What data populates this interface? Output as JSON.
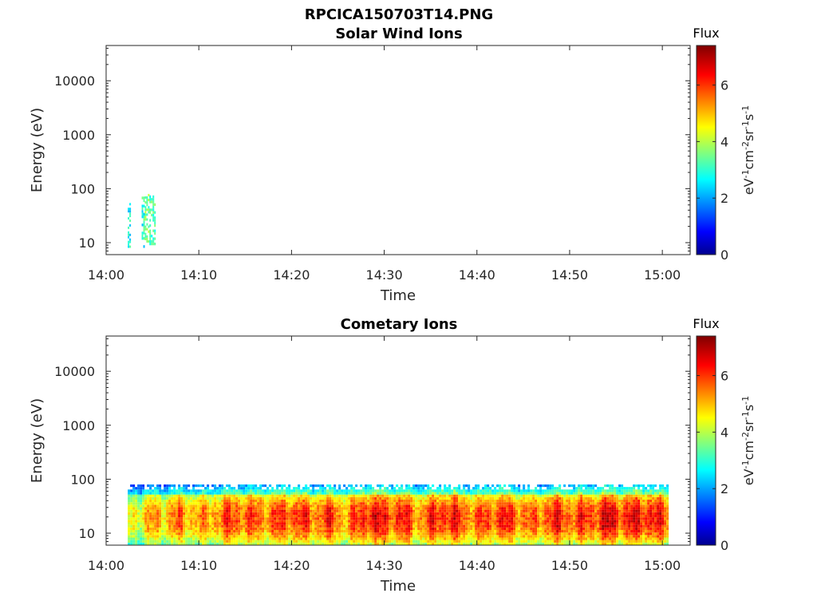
{
  "figure": {
    "title": "RPCICA150703T14.PNG"
  },
  "colorbar": {
    "label": "Flux",
    "units_base": [
      "eV",
      "cm",
      "sr",
      "s"
    ],
    "units_exp": [
      "-1",
      "-2",
      "-1",
      "-1"
    ],
    "ticks": [
      "0",
      "2",
      "4",
      "6"
    ],
    "range": [
      0,
      7.4
    ]
  },
  "chart_data": [
    {
      "type": "heatmap",
      "title": "Solar Wind Ions",
      "xlabel": "Time",
      "ylabel": "Energy (eV)",
      "x_ticks": [
        "14:00",
        "14:10",
        "14:20",
        "14:30",
        "14:40",
        "14:50",
        "15:00"
      ],
      "y_ticks": [
        "10",
        "100",
        "1000",
        "10000"
      ],
      "xlim": [
        "14:00",
        "15:03"
      ],
      "ylim": [
        6,
        45000
      ],
      "y_scale": "log",
      "blocks": [
        {
          "t0": "14:02:20",
          "t1": "14:02:40",
          "e0": 8,
          "e1": 60,
          "flux": 2.8
        },
        {
          "t0": "14:03:50",
          "t1": "14:04:10",
          "e0": 8,
          "e1": 80,
          "flux": 3.0
        },
        {
          "t0": "14:04:10",
          "t1": "14:04:40",
          "e0": 10,
          "e1": 80,
          "flux": 3.6
        },
        {
          "t0": "14:04:40",
          "t1": "14:05:20",
          "e0": 8,
          "e1": 75,
          "flux": 3.2
        }
      ]
    },
    {
      "type": "heatmap",
      "title": "Cometary Ions",
      "xlabel": "Time",
      "ylabel": "Energy (eV)",
      "x_ticks": [
        "14:00",
        "14:10",
        "14:20",
        "14:30",
        "14:40",
        "14:50",
        "15:00"
      ],
      "y_ticks": [
        "10",
        "100",
        "1000",
        "10000"
      ],
      "xlim": [
        "14:00",
        "15:03"
      ],
      "ylim": [
        6,
        45000
      ],
      "y_scale": "log",
      "data_start": "14:02:20",
      "data_end": "15:00:40",
      "energy_range": [
        6,
        80
      ],
      "activity": [
        {
          "t": "14:02",
          "flux": 4.4
        },
        {
          "t": "14:04",
          "flux": 5.0
        },
        {
          "t": "14:06",
          "flux": 5.3
        },
        {
          "t": "14:08",
          "flux": 5.6
        },
        {
          "t": "14:10",
          "flux": 5.2
        },
        {
          "t": "14:12",
          "flux": 5.7
        },
        {
          "t": "14:14",
          "flux": 6.1
        },
        {
          "t": "14:16",
          "flux": 5.8
        },
        {
          "t": "14:18",
          "flux": 5.9
        },
        {
          "t": "14:20",
          "flux": 6.2
        },
        {
          "t": "14:22",
          "flux": 5.8
        },
        {
          "t": "14:24",
          "flux": 6.0
        },
        {
          "t": "14:26",
          "flux": 5.4
        },
        {
          "t": "14:28",
          "flux": 6.6
        },
        {
          "t": "14:30",
          "flux": 6.3
        },
        {
          "t": "14:32",
          "flux": 6.2
        },
        {
          "t": "14:34",
          "flux": 5.6
        },
        {
          "t": "14:36",
          "flux": 6.5
        },
        {
          "t": "14:38",
          "flux": 6.1
        },
        {
          "t": "14:40",
          "flux": 5.7
        },
        {
          "t": "14:42",
          "flux": 6.3
        },
        {
          "t": "14:44",
          "flux": 6.0
        },
        {
          "t": "14:46",
          "flux": 5.5
        },
        {
          "t": "14:48",
          "flux": 6.3
        },
        {
          "t": "14:50",
          "flux": 6.0
        },
        {
          "t": "14:52",
          "flux": 6.1
        },
        {
          "t": "14:54",
          "flux": 6.7
        },
        {
          "t": "14:56",
          "flux": 6.2
        },
        {
          "t": "14:58",
          "flux": 6.6
        },
        {
          "t": "15:00",
          "flux": 6.0
        }
      ]
    }
  ]
}
